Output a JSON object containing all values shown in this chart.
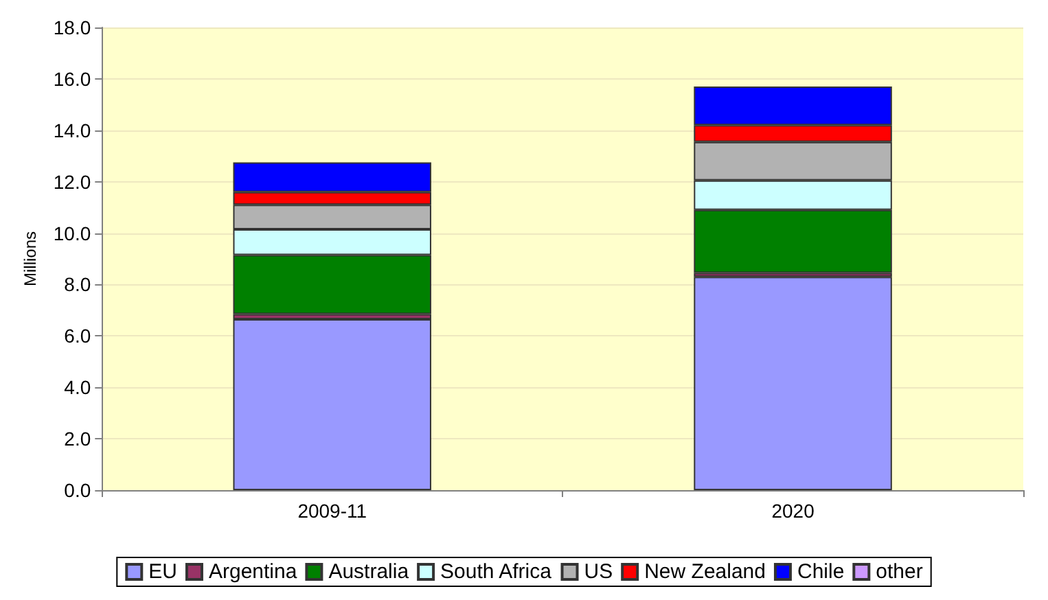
{
  "chart_data": {
    "type": "bar",
    "stacked": true,
    "ylabel": "Millions",
    "categories": [
      "2009-11",
      "2020"
    ],
    "series": [
      {
        "name": "EU",
        "color": "#9999ff",
        "values": [
          6.65,
          8.3
        ]
      },
      {
        "name": "Argentina",
        "color": "#993366",
        "values": [
          0.2,
          0.15
        ]
      },
      {
        "name": "Australia",
        "color": "#008000",
        "values": [
          2.3,
          2.45
        ]
      },
      {
        "name": "South Africa",
        "color": "#ccffff",
        "values": [
          1.0,
          1.15
        ]
      },
      {
        "name": "US",
        "color": "#b2b2b2",
        "values": [
          0.95,
          1.5
        ]
      },
      {
        "name": "New Zealand",
        "color": "#ff0000",
        "values": [
          0.5,
          0.65
        ]
      },
      {
        "name": "Chile",
        "color": "#0000ff",
        "values": [
          1.15,
          1.5
        ]
      },
      {
        "name": "other",
        "color": "#cc99ff",
        "values": [
          null,
          null
        ]
      }
    ],
    "ylim": [
      0,
      18
    ],
    "yticks": [
      {
        "value": 0,
        "label": "0.0"
      },
      {
        "value": 2,
        "label": "2.0"
      },
      {
        "value": 4,
        "label": "4.0"
      },
      {
        "value": 6,
        "label": "6.0"
      },
      {
        "value": 8,
        "label": "8.0"
      },
      {
        "value": 10,
        "label": "10.0"
      },
      {
        "value": 12,
        "label": "12.0"
      },
      {
        "value": 14,
        "label": "14.0"
      },
      {
        "value": 16,
        "label": "16.0"
      },
      {
        "value": 18,
        "label": "18.0"
      }
    ],
    "grid": "y",
    "legend": "bottom"
  }
}
